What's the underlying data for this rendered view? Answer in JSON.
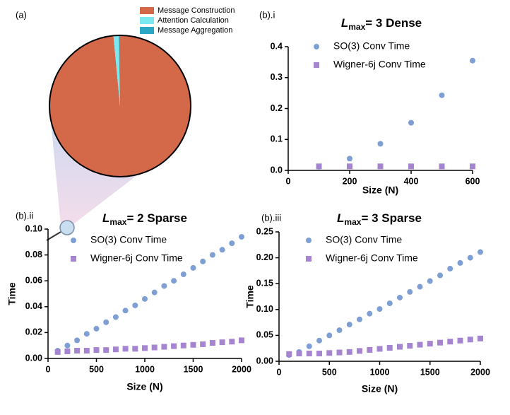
{
  "chart_data": [
    {
      "type": "pie",
      "label": "(a)",
      "categories": [
        "Message Construction",
        "Attention Calculation",
        "Message Aggregation"
      ],
      "values": [
        98.5,
        1.2,
        0.3
      ],
      "colors": [
        "#d4694a",
        "#7ee8f1",
        "#2aa7c3"
      ]
    },
    {
      "type": "scatter",
      "label": "(b).i",
      "title_symbol": "L",
      "title_sub": "max",
      "title_rest": "= 3 Dense",
      "xlabel": "Size (N)",
      "x": [
        100,
        200,
        300,
        400,
        500,
        600
      ],
      "series": [
        {
          "name": "SO(3) Conv Time",
          "color": "#7e9fd4",
          "marker": "circle",
          "values": [
            0.012,
            0.038,
            0.086,
            0.154,
            0.243,
            0.355
          ]
        },
        {
          "name": "Wigner-6j Conv Time",
          "color": "#a585d0",
          "marker": "square",
          "values": [
            0.013,
            0.013,
            0.013,
            0.013,
            0.013,
            0.013
          ]
        }
      ],
      "xlim": [
        0,
        600
      ],
      "xticks": [
        0,
        200,
        400,
        600
      ],
      "ylim": [
        0,
        0.4
      ],
      "yticks": [
        {
          "value": 0,
          "label": "0.0"
        },
        0.1,
        0.2,
        0.3,
        0.4
      ]
    },
    {
      "type": "scatter",
      "label": "(b).ii",
      "title_symbol": "L",
      "title_sub": "max",
      "title_rest": "= 2 Sparse",
      "xlabel": "Size (N)",
      "ylabel": "Time",
      "x": [
        100,
        200,
        300,
        400,
        500,
        600,
        700,
        800,
        900,
        1000,
        1100,
        1200,
        1300,
        1400,
        1500,
        1600,
        1700,
        1800,
        1900,
        2000
      ],
      "series": [
        {
          "name": "SO(3) Conv Time",
          "color": "#7e9fd4",
          "marker": "circle",
          "values": [
            0.006,
            0.01,
            0.014,
            0.019,
            0.023,
            0.028,
            0.032,
            0.037,
            0.041,
            0.046,
            0.051,
            0.056,
            0.06,
            0.065,
            0.07,
            0.075,
            0.08,
            0.084,
            0.089,
            0.094
          ]
        },
        {
          "name": "Wigner-6j Conv Time",
          "color": "#a585d0",
          "marker": "square",
          "values": [
            0.005,
            0.0055,
            0.006,
            0.006,
            0.0065,
            0.0065,
            0.007,
            0.0075,
            0.0075,
            0.008,
            0.0085,
            0.009,
            0.0095,
            0.01,
            0.0105,
            0.011,
            0.012,
            0.0125,
            0.013,
            0.014
          ]
        }
      ],
      "xlim": [
        0,
        2000
      ],
      "xticks": [
        0,
        500,
        1000,
        1500,
        2000
      ],
      "ylim": [
        0,
        0.1
      ],
      "yticks": [
        {
          "value": 0,
          "label": "0.00"
        },
        0.02,
        0.04,
        0.06,
        0.08,
        {
          "value": 0.1,
          "label": "0.10"
        }
      ]
    },
    {
      "type": "scatter",
      "label": "(b).iii",
      "title_symbol": "L",
      "title_sub": "max",
      "title_rest": "= 3 Sparse",
      "xlabel": "Size (N)",
      "ylabel": "Time",
      "x": [
        100,
        200,
        300,
        400,
        500,
        600,
        700,
        800,
        900,
        1000,
        1100,
        1200,
        1300,
        1400,
        1500,
        1600,
        1700,
        1800,
        1900,
        2000
      ],
      "series": [
        {
          "name": "SO(3) Conv Time",
          "color": "#7e9fd4",
          "marker": "circle",
          "values": [
            0.012,
            0.018,
            0.029,
            0.04,
            0.05,
            0.06,
            0.071,
            0.081,
            0.092,
            0.101,
            0.112,
            0.123,
            0.134,
            0.144,
            0.155,
            0.166,
            0.179,
            0.19,
            0.2,
            0.211
          ]
        },
        {
          "name": "Wigner-6j Conv Time",
          "color": "#a585d0",
          "marker": "square",
          "values": [
            0.014,
            0.015,
            0.015,
            0.015,
            0.016,
            0.017,
            0.018,
            0.02,
            0.022,
            0.024,
            0.026,
            0.028,
            0.03,
            0.032,
            0.034,
            0.036,
            0.038,
            0.04,
            0.042,
            0.044
          ]
        }
      ],
      "xlim": [
        0,
        2000
      ],
      "xticks": [
        0,
        500,
        1000,
        1500,
        2000
      ],
      "ylim": [
        0,
        0.25
      ],
      "yticks": [
        {
          "value": 0,
          "label": "0.00"
        },
        0.05,
        {
          "value": 0.1,
          "label": "0.10"
        },
        0.15,
        {
          "value": 0.2,
          "label": "0.20"
        },
        0.25
      ]
    }
  ]
}
